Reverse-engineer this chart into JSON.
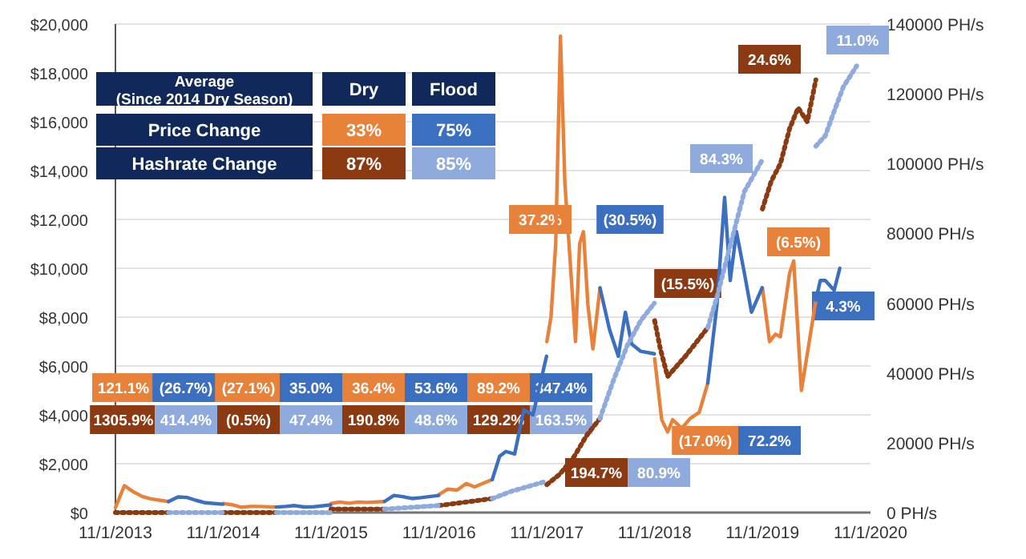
{
  "chart_data": {
    "type": "line",
    "grid": "y",
    "xlim": [
      "2013-11-01",
      "2020-11-01"
    ],
    "xticks": [
      {
        "value": "2013-11-01",
        "label": "11/1/2013"
      },
      {
        "value": "2014-11-01",
        "label": "11/1/2014"
      },
      {
        "value": "2015-11-01",
        "label": "11/1/2015"
      },
      {
        "value": "2016-11-01",
        "label": "11/1/2016"
      },
      {
        "value": "2017-11-01",
        "label": "11/1/2017"
      },
      {
        "value": "2018-11-01",
        "label": "11/1/2018"
      },
      {
        "value": "2019-11-01",
        "label": "11/1/2019"
      },
      {
        "value": "2020-11-01",
        "label": "11/1/2020"
      }
    ],
    "ylim": [
      0,
      20000
    ],
    "yticks": [
      {
        "value": 0,
        "label": "$0"
      },
      {
        "value": 2000,
        "label": "$2,000"
      },
      {
        "value": 4000,
        "label": "$4,000"
      },
      {
        "value": 6000,
        "label": "$6,000"
      },
      {
        "value": 8000,
        "label": "$8,000"
      },
      {
        "value": 10000,
        "label": "$10,000"
      },
      {
        "value": 12000,
        "label": "$12,000"
      },
      {
        "value": 14000,
        "label": "$14,000"
      },
      {
        "value": 16000,
        "label": "$16,000"
      },
      {
        "value": 18000,
        "label": "$18,000"
      },
      {
        "value": 20000,
        "label": "$20,000"
      }
    ],
    "y2lim": [
      0,
      140000
    ],
    "y2ticks": [
      {
        "value": 0,
        "label": "0 PH/s"
      },
      {
        "value": 20000,
        "label": "20000 PH/s"
      },
      {
        "value": 40000,
        "label": "40000 PH/s"
      },
      {
        "value": 60000,
        "label": "60000 PH/s"
      },
      {
        "value": 80000,
        "label": "80000 PH/s"
      },
      {
        "value": 100000,
        "label": "100000 PH/s"
      },
      {
        "value": 120000,
        "label": "120000 PH/s"
      },
      {
        "value": 140000,
        "label": "140000 PH/s"
      }
    ],
    "series": [
      {
        "color": "#e8823a",
        "line_style": "solid",
        "x": [
          "2013-11-01",
          "2013-12-01",
          "2014-01-01",
          "2014-02-01",
          "2014-03-01",
          "2014-04-30",
          "2014-05-01",
          "2014-11-01",
          "2014-12-01",
          "2015-01-01",
          "2015-02-01",
          "2015-03-01",
          "2015-04-30",
          "2015-05-01",
          "2015-11-01",
          "2015-12-01",
          "2016-01-01",
          "2016-02-01",
          "2016-03-01",
          "2016-04-30",
          "2016-05-01",
          "2016-11-01",
          "2016-12-01",
          "2017-01-01",
          "2017-02-01",
          "2017-03-01",
          "2017-04-30",
          "2017-05-01",
          "2017-11-01",
          "2017-11-15",
          "2017-12-01",
          "2017-12-17",
          "2018-01-01",
          "2018-01-15",
          "2018-02-06",
          "2018-02-20",
          "2018-03-05",
          "2018-03-20",
          "2018-04-06",
          "2018-04-30",
          "2018-05-01",
          "2018-11-01",
          "2018-11-25",
          "2018-12-15",
          "2019-01-01",
          "2019-02-01",
          "2019-03-01",
          "2019-04-01",
          "2019-04-30",
          "2019-05-01",
          "2019-11-01",
          "2019-11-25",
          "2019-12-15",
          "2020-01-01",
          "2020-02-01",
          "2020-02-15",
          "2020-03-12",
          "2020-04-01",
          "2020-04-30"
        ],
        "values": [
          200,
          1100,
          850,
          650,
          560,
          450,
          null,
          370,
          320,
          220,
          250,
          250,
          225,
          null,
          370,
          430,
          380,
          430,
          415,
          450,
          null,
          740,
          960,
          920,
          1190,
          1050,
          1350,
          null,
          7000,
          8000,
          11000,
          19500,
          13500,
          11000,
          7000,
          11000,
          11500,
          8500,
          6700,
          9200,
          null,
          6300,
          3800,
          3300,
          3800,
          3450,
          3850,
          4100,
          5300,
          null,
          9200,
          7000,
          7300,
          7200,
          9800,
          10300,
          5000,
          6500,
          8700
        ]
      },
      {
        "color": "#3b6fc0",
        "line_style": "solid",
        "x": [
          "2014-04-30",
          "2014-06-01",
          "2014-07-01",
          "2014-08-01",
          "2014-09-01",
          "2014-10-31",
          "2014-11-01",
          "2015-04-30",
          "2015-06-01",
          "2015-07-01",
          "2015-08-01",
          "2015-09-01",
          "2015-10-31",
          "2015-11-01",
          "2016-04-30",
          "2016-06-01",
          "2016-07-01",
          "2016-08-01",
          "2016-09-01",
          "2016-10-31",
          "2016-11-01",
          "2017-04-30",
          "2017-05-25",
          "2017-06-15",
          "2017-07-15",
          "2017-08-15",
          "2017-09-15",
          "2017-10-31",
          "2017-11-01",
          "2018-04-30",
          "2018-06-01",
          "2018-07-01",
          "2018-07-25",
          "2018-08-15",
          "2018-09-15",
          "2018-10-31",
          "2018-11-01",
          "2019-04-30",
          "2019-05-31",
          "2019-06-26",
          "2019-07-15",
          "2019-08-05",
          "2019-09-01",
          "2019-09-25",
          "2019-10-31",
          "2019-11-01",
          "2020-04-30",
          "2020-05-15",
          "2020-06-01",
          "2020-07-01",
          "2020-07-20"
        ],
        "values": [
          450,
          640,
          620,
          500,
          400,
          340,
          null,
          225,
          250,
          285,
          230,
          235,
          310,
          null,
          450,
          700,
          650,
          575,
          610,
          700,
          null,
          1350,
          2300,
          2500,
          2400,
          4200,
          4000,
          6400,
          null,
          9200,
          7500,
          6400,
          8200,
          6900,
          6600,
          6500,
          null,
          5300,
          8500,
          12900,
          9500,
          11500,
          9800,
          8200,
          9200,
          null,
          8700,
          9500,
          9500,
          9100,
          10000
        ]
      },
      {
        "color": "#8b3a12",
        "line_style": "dotted",
        "axis": "y2",
        "x": [
          "2013-11-01",
          "2014-04-30",
          "2014-05-01",
          "2014-11-01",
          "2015-04-30",
          "2015-05-01",
          "2015-11-01",
          "2016-04-30",
          "2016-05-01",
          "2016-11-01",
          "2017-04-30",
          "2017-05-01",
          "2017-11-01",
          "2017-12-15",
          "2018-02-01",
          "2018-03-15",
          "2018-04-30",
          "2018-05-01",
          "2018-11-01",
          "2018-11-20",
          "2018-12-15",
          "2019-01-15",
          "2019-02-15",
          "2019-03-15",
          "2019-04-30",
          "2019-05-01",
          "2019-11-01",
          "2019-12-01",
          "2020-01-01",
          "2020-02-01",
          "2020-03-01",
          "2020-04-01",
          "2020-04-30"
        ],
        "values": [
          0,
          0,
          null,
          0,
          0,
          null,
          1000,
          1000,
          null,
          2000,
          4000,
          null,
          8000,
          11000,
          16000,
          22000,
          27000,
          null,
          55000,
          47000,
          39000,
          42000,
          45000,
          48000,
          53000,
          null,
          87000,
          95000,
          100000,
          110000,
          116000,
          112000,
          124000
        ]
      },
      {
        "color": "#8faadc",
        "line_style": "dotted",
        "axis": "y2",
        "x": [
          "2014-04-30",
          "2014-10-31",
          "2014-11-01",
          "2015-04-30",
          "2015-10-31",
          "2015-11-01",
          "2016-04-30",
          "2016-10-31",
          "2016-11-01",
          "2017-04-30",
          "2017-07-01",
          "2017-10-31",
          "2017-11-01",
          "2018-04-30",
          "2018-06-15",
          "2018-08-01",
          "2018-09-15",
          "2018-10-31",
          "2018-11-01",
          "2019-04-30",
          "2019-06-01",
          "2019-07-01",
          "2019-08-01",
          "2019-09-01",
          "2019-10-31",
          "2019-11-01",
          "2020-04-30",
          "2020-06-01",
          "2020-07-01",
          "2020-08-01",
          "2020-09-15"
        ],
        "values": [
          0,
          0,
          null,
          0,
          0,
          null,
          1000,
          2000,
          null,
          4000,
          6000,
          9000,
          null,
          27000,
          38000,
          48000,
          55000,
          60000,
          null,
          53000,
          62000,
          72000,
          82000,
          92000,
          101000,
          null,
          105000,
          108000,
          115000,
          122000,
          128000
        ]
      }
    ],
    "annotations": [
      "Average\n(Since 2014 Dry Season)",
      "Dry",
      "Flood",
      "Price Change",
      "Hashrate  Change",
      "33%",
      "75%",
      "87%",
      "85%",
      "121.1%",
      "(26.7%)",
      "(27.1%)",
      "35.0%",
      "36.4%",
      "53.6%",
      "89.2%",
      "347.4%",
      "37.2%",
      "(30.5%)",
      "(17.0%)",
      "72.2%",
      "(6.5%)",
      "4.3%",
      "1305.9%",
      "414.4%",
      "(0.5%)",
      "47.4%",
      "190.8%",
      "48.6%",
      "129.2%",
      "163.5%",
      "194.7%",
      "80.9%",
      "(15.5%)",
      "84.3%",
      "24.6%",
      "11.0%"
    ]
  }
}
